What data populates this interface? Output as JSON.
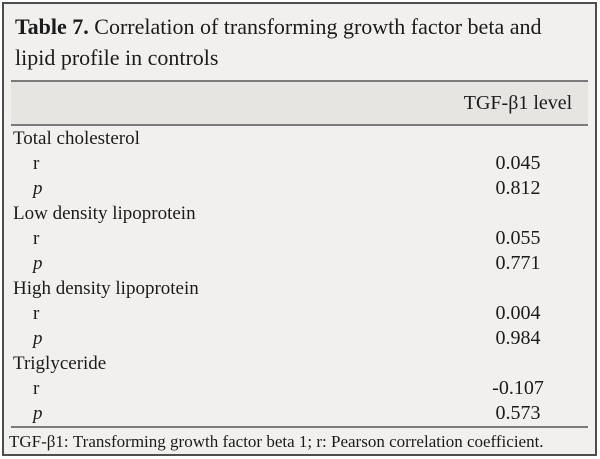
{
  "title": {
    "label": "Table 7.",
    "text": " Correlation of transforming growth factor beta and lipid profile in controls"
  },
  "table": {
    "column_header": "TGF-β1 level",
    "labels": {
      "r": "r",
      "p": "p"
    },
    "groups": [
      {
        "name": "Total cholesterol",
        "r": "0.045",
        "p": "0.812"
      },
      {
        "name": "Low density lipoprotein",
        "r": "0.055",
        "p": "0.771"
      },
      {
        "name": "High density lipoprotein",
        "r": "0.004",
        "p": "0.984"
      },
      {
        "name": "Triglyceride",
        "r": "-0.107",
        "p": "0.573"
      }
    ]
  },
  "footnote": "TGF-β1: Transforming growth factor beta 1; r: Pearson correlation coefficient.",
  "colors": {
    "background": "#f1f0ee",
    "header_band": "#e6e5e2",
    "border": "#4d4d4d",
    "rule": "#7b7b7b",
    "text": "#1b1b1b"
  }
}
